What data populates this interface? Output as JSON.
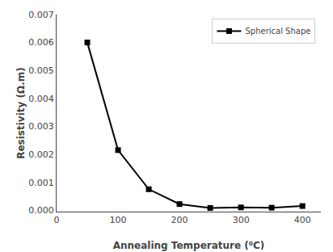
{
  "chart_data": {
    "type": "line",
    "x": [
      50,
      100,
      150,
      200,
      250,
      300,
      350,
      400
    ],
    "series": [
      {
        "name": "Spherical Shape",
        "color": "#000000",
        "marker": "square",
        "line_style": "solid",
        "values": [
          0.006,
          0.00215,
          0.00075,
          0.00022,
          8e-05,
          0.0001,
          9e-05,
          0.00015
        ]
      }
    ],
    "x_label": "Annealing Temperature (⁰C)",
    "y_label": "Resistivity (Ω.m)",
    "xlim": [
      0,
      430
    ],
    "ylim": [
      -5e-05,
      0.007
    ],
    "xticks": [
      0,
      100,
      200,
      300,
      400
    ],
    "yticks": [
      {
        "value": 0,
        "label": "0.000"
      },
      0.001,
      0.002,
      0.003,
      0.004,
      0.005,
      0.006,
      0.007
    ],
    "legend": "upper right",
    "grid": false
  }
}
